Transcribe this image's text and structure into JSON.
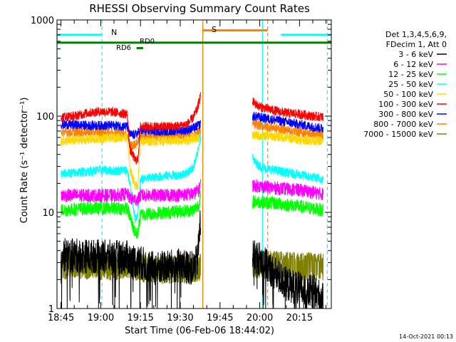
{
  "chart_data": {
    "type": "line",
    "title": "RHESSI Observing Summary Count Rates",
    "xlabel": "Start Time (06-Feb-06 18:44:02)",
    "ylabel": "Count Rate (s⁻¹ detector⁻¹)",
    "yscale": "log",
    "ylim": [
      1,
      1000
    ],
    "xlim_minutes": [
      -1.5,
      102
    ],
    "x_unit": "minutes after 18:45",
    "y_ticks": [
      "1",
      "10",
      "100",
      "1000"
    ],
    "x_ticks": [
      {
        "label": "18:45",
        "t": 0
      },
      {
        "label": "19:00",
        "t": 15
      },
      {
        "label": "19:15",
        "t": 30
      },
      {
        "label": "19:30",
        "t": 45
      },
      {
        "label": "19:45",
        "t": 60
      },
      {
        "label": "20:00",
        "t": 75
      },
      {
        "label": "20:15",
        "t": 90
      }
    ],
    "legend_header": [
      "Det 1,3,4,5,6,9,",
      "FDecim 1, Att 0"
    ],
    "series": [
      {
        "name": "3 - 6 keV",
        "color": "#000000",
        "points": [
          [
            0,
            3.6
          ],
          [
            10,
            3.5
          ],
          [
            25,
            3.4
          ],
          [
            26,
            3.2
          ],
          [
            30,
            3.0
          ],
          [
            35,
            2.6
          ],
          [
            40,
            2.7
          ],
          [
            45,
            2.8
          ],
          [
            50,
            2.6
          ],
          [
            51.5,
            3.2
          ],
          [
            52.5,
            7.5
          ],
          [
            72.5,
            3.6
          ],
          [
            75,
            3.3
          ],
          [
            80,
            2.4
          ],
          [
            85,
            1.8
          ],
          [
            90,
            1.6
          ],
          [
            93,
            1.4
          ],
          [
            94,
            1.5
          ],
          [
            96,
            1.5
          ],
          [
            99,
            1.2
          ]
        ]
      },
      {
        "name": "6 - 12 keV",
        "color": "#ff00ff",
        "points": [
          [
            0,
            15
          ],
          [
            10,
            15
          ],
          [
            20,
            15
          ],
          [
            25,
            15.5
          ],
          [
            26,
            14
          ],
          [
            29,
            13.5
          ],
          [
            30,
            15
          ],
          [
            40,
            15
          ],
          [
            50,
            15.5
          ],
          [
            52,
            17
          ],
          [
            52.5,
            19.5
          ],
          [
            72.5,
            19
          ],
          [
            80,
            18
          ],
          [
            90,
            17
          ],
          [
            99,
            15.5
          ]
        ]
      },
      {
        "name": "12 - 25 keV",
        "color": "#00ff00",
        "points": [
          [
            0,
            10.5
          ],
          [
            10,
            11
          ],
          [
            20,
            11
          ],
          [
            25,
            11
          ],
          [
            26,
            9
          ],
          [
            28,
            6
          ],
          [
            29,
            6
          ],
          [
            30,
            9.5
          ],
          [
            40,
            10
          ],
          [
            50,
            10.5
          ],
          [
            52,
            12
          ],
          [
            52.5,
            14.5
          ],
          [
            72,
            9
          ],
          [
            72.5,
            13
          ],
          [
            80,
            12.5
          ],
          [
            90,
            11.5
          ],
          [
            99,
            10.5
          ]
        ]
      },
      {
        "name": "25 - 50 keV",
        "color": "#00ffff",
        "points": [
          [
            0,
            25
          ],
          [
            10,
            26.5
          ],
          [
            15,
            27.5
          ],
          [
            20,
            27
          ],
          [
            25,
            27.5
          ],
          [
            26,
            20
          ],
          [
            28,
            8.5
          ],
          [
            29,
            9
          ],
          [
            30,
            22
          ],
          [
            35,
            23
          ],
          [
            40,
            24
          ],
          [
            45,
            24.5
          ],
          [
            48,
            26
          ],
          [
            50,
            30
          ],
          [
            51.5,
            40
          ],
          [
            52.5,
            60
          ],
          [
            72,
            50
          ],
          [
            72.5,
            35
          ],
          [
            75,
            30
          ],
          [
            80,
            27.5
          ],
          [
            90,
            24.5
          ],
          [
            99,
            22
          ]
        ]
      },
      {
        "name": "50 - 100 keV",
        "color": "#ffd700",
        "points": [
          [
            0,
            55
          ],
          [
            10,
            57
          ],
          [
            20,
            60
          ],
          [
            25,
            60
          ],
          [
            26,
            28
          ],
          [
            28,
            19
          ],
          [
            29,
            19
          ],
          [
            30,
            55
          ],
          [
            40,
            55
          ],
          [
            48,
            56
          ],
          [
            50,
            59
          ],
          [
            52.5,
            60
          ],
          [
            72.5,
            63
          ],
          [
            80,
            62
          ],
          [
            90,
            57
          ],
          [
            99,
            55
          ]
        ]
      },
      {
        "name": "100 - 300 keV",
        "color": "#ff0000",
        "points": [
          [
            0,
            98
          ],
          [
            5,
            100
          ],
          [
            10,
            108
          ],
          [
            15,
            112
          ],
          [
            20,
            110
          ],
          [
            25,
            105
          ],
          [
            26,
            45
          ],
          [
            28,
            35
          ],
          [
            29,
            35
          ],
          [
            30,
            78
          ],
          [
            35,
            78
          ],
          [
            40,
            78
          ],
          [
            45,
            79
          ],
          [
            48,
            84
          ],
          [
            50,
            98
          ],
          [
            51.5,
            120
          ],
          [
            52.5,
            160
          ],
          [
            72.5,
            140
          ],
          [
            75,
            125
          ],
          [
            80,
            115
          ],
          [
            85,
            108
          ],
          [
            90,
            105
          ],
          [
            95,
            100
          ],
          [
            99,
            98
          ]
        ]
      },
      {
        "name": "300 - 800 keV",
        "color": "#0000ff",
        "points": [
          [
            0,
            82
          ],
          [
            10,
            80
          ],
          [
            20,
            80
          ],
          [
            25,
            78
          ],
          [
            26,
            64
          ],
          [
            28,
            64
          ],
          [
            30,
            70
          ],
          [
            40,
            70
          ],
          [
            48,
            72
          ],
          [
            50,
            75
          ],
          [
            52.5,
            82
          ],
          [
            72.5,
            100
          ],
          [
            80,
            92
          ],
          [
            90,
            82
          ],
          [
            99,
            74
          ]
        ]
      },
      {
        "name": "800 - 7000 keV",
        "color": "#ff8000",
        "points": [
          [
            0,
            68
          ],
          [
            10,
            68
          ],
          [
            20,
            68
          ],
          [
            25,
            65
          ],
          [
            26,
            50
          ],
          [
            28,
            50
          ],
          [
            30,
            60
          ],
          [
            40,
            62
          ],
          [
            50,
            64
          ],
          [
            52.5,
            70
          ],
          [
            72.5,
            82
          ],
          [
            80,
            76
          ],
          [
            90,
            68
          ],
          [
            99,
            63
          ]
        ]
      },
      {
        "name": "7000 - 15000 keV",
        "color": "#808000",
        "points": [
          [
            0,
            2.7
          ],
          [
            10,
            2.7
          ],
          [
            20,
            2.6
          ],
          [
            25,
            2.8
          ],
          [
            30,
            2.5
          ],
          [
            40,
            2.4
          ],
          [
            50,
            2.5
          ],
          [
            52.5,
            2.6
          ],
          [
            72.5,
            2.8
          ],
          [
            80,
            2.7
          ],
          [
            90,
            2.6
          ],
          [
            99,
            2.6
          ]
        ]
      }
    ],
    "annotations": {
      "night": {
        "label": "N",
        "segments": [
          [
            -1.5,
            15.5
          ],
          [
            83,
            102
          ]
        ],
        "y": 700,
        "color": "#00ffff"
      },
      "saa": {
        "label": "S",
        "segments": [
          [
            53.5,
            78
          ]
        ],
        "y": 780,
        "color": "#ff8000"
      },
      "decimation": {
        "label": "RD0",
        "segments": [
          [
            -1.5,
            102
          ]
        ],
        "y": 580,
        "color": "#008000"
      },
      "rate_decim": {
        "label": "RD6",
        "segments": [
          [
            28.5,
            31
          ]
        ],
        "y": 510,
        "color": "#008000"
      },
      "vlines": [
        {
          "t": -1.5,
          "color": "#00ffff",
          "style": "solid"
        },
        {
          "t": 15.5,
          "color": "#00ffff",
          "style": "dashed"
        },
        {
          "t": 53.5,
          "color": "#ff8000",
          "style": "solid"
        },
        {
          "t": 76,
          "color": "#00ffff",
          "style": "solid"
        },
        {
          "t": 78,
          "color": "#ff8000",
          "style": "dashed"
        },
        {
          "t": 100.5,
          "color": "#00ffff",
          "style": "dashed"
        }
      ]
    }
  },
  "footer": {
    "timestamp": "14-Oct-2021 00:13"
  }
}
